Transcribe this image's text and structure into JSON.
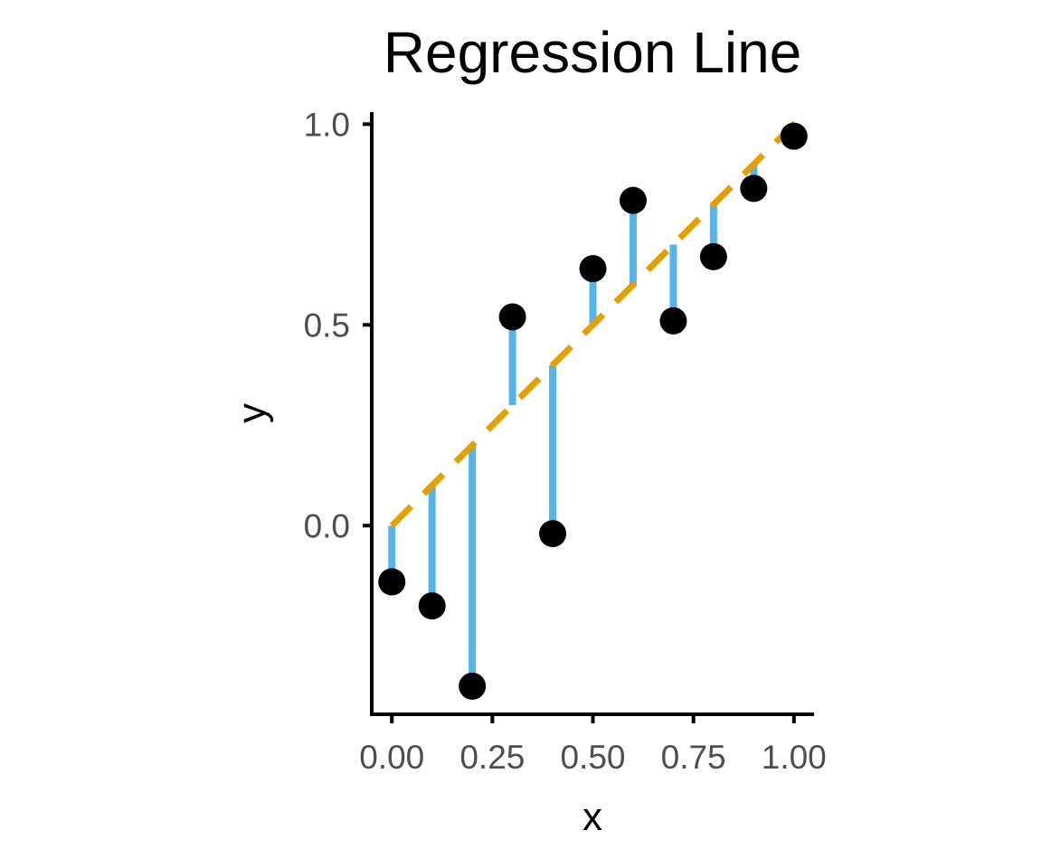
{
  "chart_data": {
    "type": "scatter",
    "title": "Regression Line",
    "xlabel": "x",
    "ylabel": "y",
    "xlim": [
      -0.05,
      1.05
    ],
    "ylim": [
      -0.47,
      1.03
    ],
    "x_ticks": [
      {
        "value": 0.0,
        "label": "0.00"
      },
      {
        "value": 0.25,
        "label": "0.25"
      },
      {
        "value": 0.5,
        "label": "0.50"
      },
      {
        "value": 0.75,
        "label": "0.75"
      },
      {
        "value": 1.0,
        "label": "1.00"
      }
    ],
    "y_ticks": [
      {
        "value": 0.0,
        "label": "0.0"
      },
      {
        "value": 0.5,
        "label": "0.5"
      },
      {
        "value": 1.0,
        "label": "1.0"
      }
    ],
    "grid": false,
    "legend": "none",
    "points": {
      "x": [
        0.0,
        0.1,
        0.2,
        0.3,
        0.4,
        0.5,
        0.6,
        0.7,
        0.8,
        0.9,
        1.0
      ],
      "y": [
        -0.14,
        -0.2,
        -0.4,
        0.52,
        -0.02,
        0.64,
        0.81,
        0.51,
        0.67,
        0.84,
        0.97
      ]
    },
    "regression_line": {
      "intercept": 0.0,
      "slope": 1.0,
      "style": "dashed"
    },
    "residuals": true,
    "colors": {
      "points": "#000000",
      "line": "#E69F00",
      "residuals": "#56B4E9",
      "axis": "#000000",
      "tick_text": "#4d4d4d"
    }
  }
}
